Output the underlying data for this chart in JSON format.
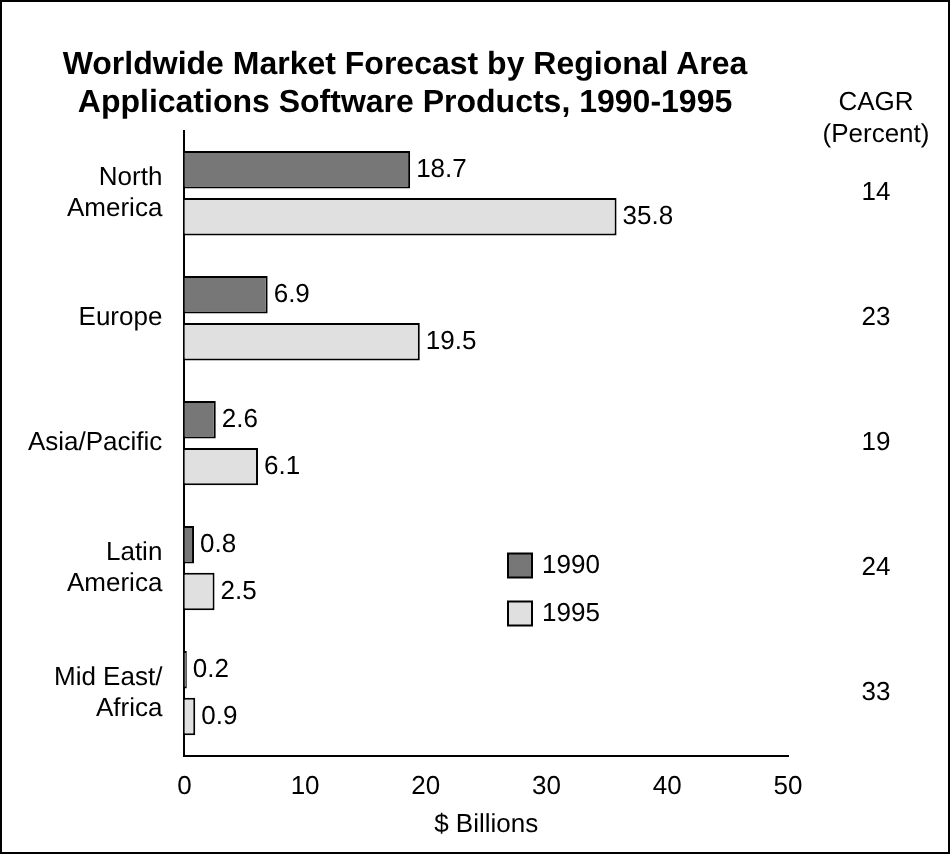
{
  "chart_data": {
    "type": "bar",
    "orientation": "horizontal",
    "title": "Worldwide Market Forecast by Regional Area\nApplications Software Products, 1990-1995",
    "xlabel": "$ Billions",
    "categories": [
      "North\nAmerica",
      "Europe",
      "Asia/Pacific",
      "Latin\nAmerica",
      "Mid East/\nAfrica"
    ],
    "series": [
      {
        "name": "1990",
        "color": "#777777",
        "values": [
          18.7,
          6.9,
          2.6,
          0.8,
          0.2
        ]
      },
      {
        "name": "1995",
        "color": "#e0e0e0",
        "values": [
          35.8,
          19.5,
          6.1,
          2.5,
          0.9
        ]
      }
    ],
    "xlim": [
      0,
      50
    ],
    "xticks": [
      0,
      10,
      20,
      30,
      40,
      50
    ],
    "grid": false,
    "legend": "bottom right",
    "data_labels": true,
    "annotations": [
      "CAGR\n(Percent)",
      "14",
      "23",
      "19",
      "24",
      "33"
    ]
  }
}
